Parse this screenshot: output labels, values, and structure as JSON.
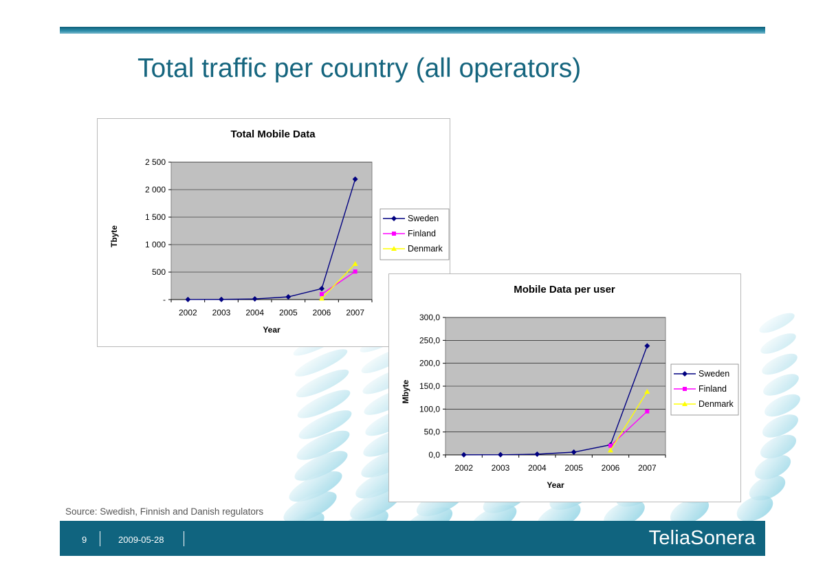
{
  "slide": {
    "title": "Total traffic per country (all operators)",
    "source": "Source: Swedish, Finnish and Danish regulators",
    "page_number": "9",
    "date": "2009-05-28",
    "brand": "TeliaSonera"
  },
  "colors": {
    "Sweden": "#000080",
    "Finland": "#ff00ff",
    "Denmark": "#ffff00",
    "plot_background": "#c0c0c0",
    "accent": "#10647f"
  },
  "chart_data": [
    {
      "type": "line",
      "title": "Total Mobile Data",
      "xlabel": "Year",
      "ylabel": "Tbyte",
      "categories": [
        "2002",
        "2003",
        "2004",
        "2005",
        "2006",
        "2007"
      ],
      "ylim": [
        0,
        2500
      ],
      "yticks": [
        0,
        500,
        1000,
        1500,
        2000,
        2500
      ],
      "ytick_labels": [
        "-",
        "500",
        "1 000",
        "1 500",
        "2 000",
        "2 500"
      ],
      "grid": true,
      "legend": "right",
      "series": [
        {
          "name": "Sweden",
          "marker": "diamond",
          "values": [
            2,
            3,
            12,
            50,
            200,
            2190
          ]
        },
        {
          "name": "Finland",
          "marker": "square",
          "values": [
            null,
            null,
            null,
            null,
            100,
            510
          ]
        },
        {
          "name": "Denmark",
          "marker": "triangle",
          "values": [
            null,
            null,
            null,
            null,
            20,
            650
          ]
        }
      ]
    },
    {
      "type": "line",
      "title": "Mobile Data per user",
      "xlabel": "Year",
      "ylabel": "Mbyte",
      "categories": [
        "2002",
        "2003",
        "2004",
        "2005",
        "2006",
        "2007"
      ],
      "ylim": [
        0,
        300
      ],
      "yticks": [
        0,
        50,
        100,
        150,
        200,
        250,
        300
      ],
      "ytick_labels": [
        "0,0",
        "50,0",
        "100,0",
        "150,0",
        "200,0",
        "250,0",
        "300,0"
      ],
      "grid": true,
      "legend": "right",
      "series": [
        {
          "name": "Sweden",
          "marker": "diamond",
          "values": [
            0.2,
            0.3,
            1.5,
            6,
            22,
            238
          ]
        },
        {
          "name": "Finland",
          "marker": "square",
          "values": [
            null,
            null,
            null,
            null,
            20,
            95
          ]
        },
        {
          "name": "Denmark",
          "marker": "triangle",
          "values": [
            null,
            null,
            null,
            null,
            10,
            138
          ]
        }
      ]
    }
  ]
}
